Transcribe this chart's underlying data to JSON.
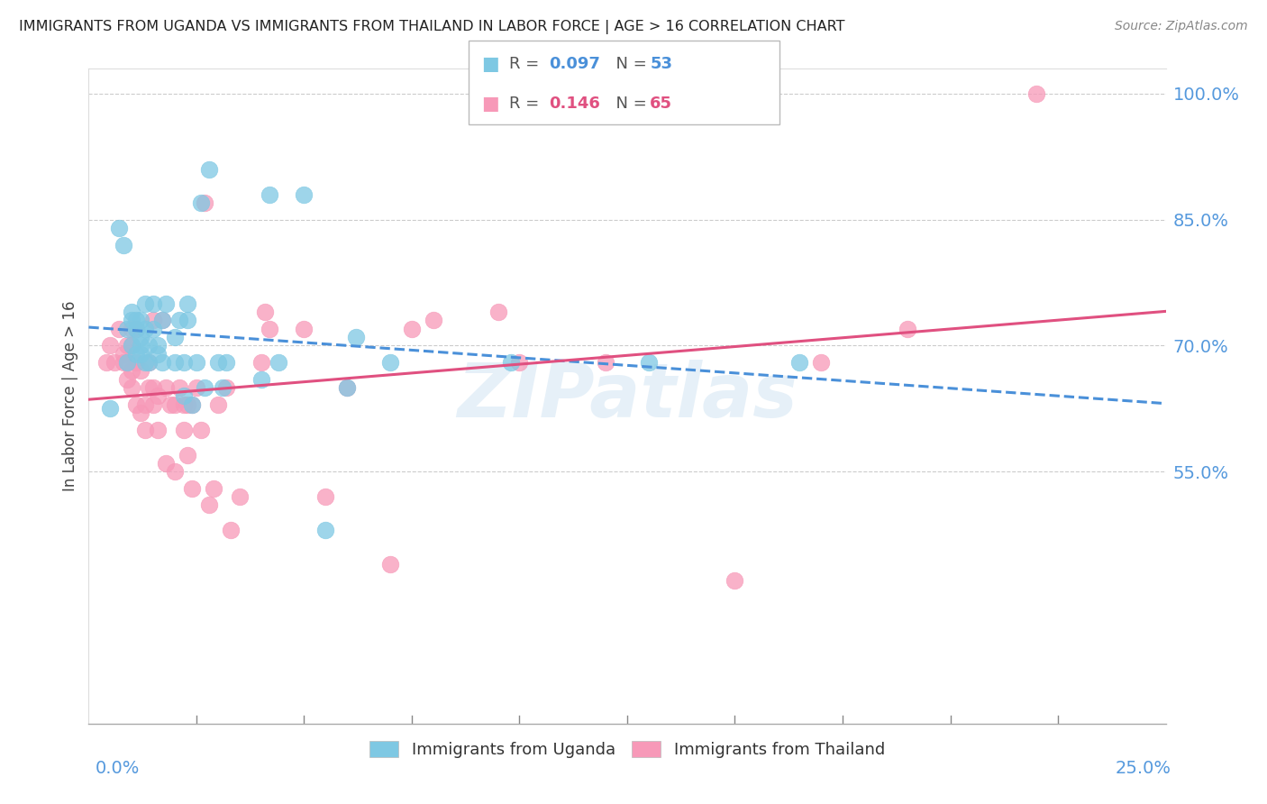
{
  "title": "IMMIGRANTS FROM UGANDA VS IMMIGRANTS FROM THAILAND IN LABOR FORCE | AGE > 16 CORRELATION CHART",
  "source": "Source: ZipAtlas.com",
  "ylabel": "In Labor Force | Age > 16",
  "y_tick_vals": [
    0.55,
    0.7,
    0.85,
    1.0
  ],
  "y_tick_labels": [
    "55.0%",
    "70.0%",
    "85.0%",
    "100.0%"
  ],
  "y_bottom_label": "25.0%",
  "x_range": [
    0.0,
    0.25
  ],
  "y_range": [
    0.25,
    1.03
  ],
  "legend_r_uganda": "0.097",
  "legend_n_uganda": "53",
  "legend_r_thailand": "0.146",
  "legend_n_thailand": "65",
  "uganda_color": "#7ec8e3",
  "thailand_color": "#f799b8",
  "trend_uganda_color": "#4a90d9",
  "trend_thailand_color": "#e05080",
  "watermark": "ZIPatlas",
  "uganda_scatter_x": [
    0.005,
    0.007,
    0.008,
    0.009,
    0.009,
    0.01,
    0.01,
    0.01,
    0.011,
    0.011,
    0.011,
    0.012,
    0.012,
    0.012,
    0.012,
    0.013,
    0.013,
    0.013,
    0.014,
    0.014,
    0.015,
    0.015,
    0.016,
    0.016,
    0.017,
    0.017,
    0.018,
    0.02,
    0.02,
    0.021,
    0.022,
    0.022,
    0.023,
    0.023,
    0.024,
    0.025,
    0.026,
    0.027,
    0.028,
    0.03,
    0.031,
    0.032,
    0.04,
    0.042,
    0.044,
    0.05,
    0.055,
    0.06,
    0.062,
    0.07,
    0.098,
    0.13,
    0.165
  ],
  "uganda_scatter_y": [
    0.625,
    0.84,
    0.82,
    0.68,
    0.72,
    0.7,
    0.73,
    0.74,
    0.69,
    0.72,
    0.73,
    0.69,
    0.7,
    0.71,
    0.73,
    0.68,
    0.72,
    0.75,
    0.68,
    0.7,
    0.72,
    0.75,
    0.69,
    0.7,
    0.68,
    0.73,
    0.75,
    0.68,
    0.71,
    0.73,
    0.64,
    0.68,
    0.73,
    0.75,
    0.63,
    0.68,
    0.87,
    0.65,
    0.91,
    0.68,
    0.65,
    0.68,
    0.66,
    0.88,
    0.68,
    0.88,
    0.48,
    0.65,
    0.71,
    0.68,
    0.68,
    0.68,
    0.68
  ],
  "thailand_scatter_x": [
    0.004,
    0.005,
    0.006,
    0.007,
    0.008,
    0.008,
    0.009,
    0.009,
    0.009,
    0.01,
    0.01,
    0.01,
    0.01,
    0.011,
    0.011,
    0.011,
    0.012,
    0.012,
    0.013,
    0.013,
    0.014,
    0.014,
    0.015,
    0.015,
    0.015,
    0.016,
    0.016,
    0.017,
    0.018,
    0.018,
    0.019,
    0.02,
    0.02,
    0.021,
    0.022,
    0.022,
    0.023,
    0.023,
    0.024,
    0.024,
    0.025,
    0.026,
    0.027,
    0.028,
    0.029,
    0.03,
    0.032,
    0.033,
    0.035,
    0.04,
    0.041,
    0.042,
    0.05,
    0.055,
    0.06,
    0.07,
    0.075,
    0.08,
    0.095,
    0.1,
    0.12,
    0.15,
    0.17,
    0.19,
    0.22
  ],
  "thailand_scatter_y": [
    0.68,
    0.7,
    0.68,
    0.72,
    0.68,
    0.69,
    0.66,
    0.68,
    0.7,
    0.65,
    0.67,
    0.7,
    0.72,
    0.63,
    0.68,
    0.72,
    0.62,
    0.67,
    0.6,
    0.63,
    0.65,
    0.68,
    0.63,
    0.65,
    0.73,
    0.6,
    0.64,
    0.73,
    0.56,
    0.65,
    0.63,
    0.55,
    0.63,
    0.65,
    0.6,
    0.63,
    0.57,
    0.63,
    0.53,
    0.63,
    0.65,
    0.6,
    0.87,
    0.51,
    0.53,
    0.63,
    0.65,
    0.48,
    0.52,
    0.68,
    0.74,
    0.72,
    0.72,
    0.52,
    0.65,
    0.44,
    0.72,
    0.73,
    0.74,
    0.68,
    0.68,
    0.42,
    0.68,
    0.72,
    1.0
  ]
}
